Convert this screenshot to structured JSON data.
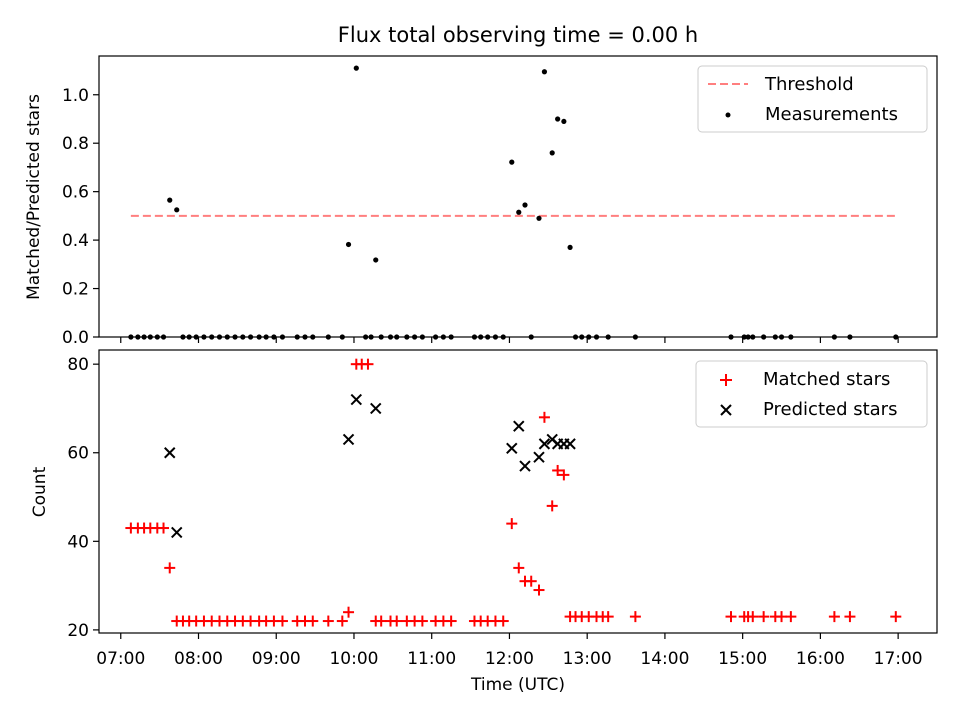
{
  "chart_data": [
    {
      "type": "scatter",
      "title": "Flux total observing time = 0.00 h",
      "ylabel": "Matched/Predicted stars",
      "xlabel": "",
      "x_ticks": [
        "07:00",
        "08:00",
        "09:00",
        "10:00",
        "11:00",
        "12:00",
        "13:00",
        "14:00",
        "15:00",
        "16:00",
        "17:00"
      ],
      "y_ticks": [
        "0.0",
        "0.2",
        "0.4",
        "0.6",
        "0.8",
        "1.0"
      ],
      "ylim": [
        0,
        1.16
      ],
      "xlim_hours": [
        6.72,
        17.5
      ],
      "legend": {
        "placement": "upper-right",
        "entries": [
          "Threshold",
          "Measurements"
        ]
      },
      "threshold": {
        "name": "Threshold",
        "value": 0.5,
        "x_range": [
          7.13,
          16.97
        ],
        "color": "#ff7f7f"
      },
      "measurements": {
        "name": "Measurements",
        "color": "#000000",
        "points": [
          [
            7.13,
            0
          ],
          [
            7.22,
            0
          ],
          [
            7.3,
            0
          ],
          [
            7.38,
            0
          ],
          [
            7.47,
            0
          ],
          [
            7.55,
            0
          ],
          [
            7.63,
            0.565
          ],
          [
            7.72,
            0.525
          ],
          [
            7.8,
            0
          ],
          [
            7.88,
            0
          ],
          [
            7.97,
            0
          ],
          [
            8.07,
            0
          ],
          [
            8.17,
            0
          ],
          [
            8.27,
            0
          ],
          [
            8.37,
            0
          ],
          [
            8.47,
            0
          ],
          [
            8.57,
            0
          ],
          [
            8.67,
            0
          ],
          [
            8.78,
            0
          ],
          [
            8.87,
            0
          ],
          [
            8.97,
            0
          ],
          [
            9.08,
            0
          ],
          [
            9.27,
            0
          ],
          [
            9.37,
            0
          ],
          [
            9.47,
            0
          ],
          [
            9.67,
            0
          ],
          [
            9.85,
            0
          ],
          [
            9.93,
            0.382
          ],
          [
            10.03,
            1.11
          ],
          [
            10.28,
            0.318
          ],
          [
            10.15,
            0
          ],
          [
            10.22,
            0
          ],
          [
            10.35,
            0
          ],
          [
            10.47,
            0
          ],
          [
            10.55,
            0
          ],
          [
            10.68,
            0
          ],
          [
            10.78,
            0
          ],
          [
            10.88,
            0
          ],
          [
            11.05,
            0
          ],
          [
            11.15,
            0
          ],
          [
            11.25,
            0
          ],
          [
            11.55,
            0
          ],
          [
            11.63,
            0
          ],
          [
            11.72,
            0
          ],
          [
            11.82,
            0
          ],
          [
            11.92,
            0
          ],
          [
            12.03,
            0.722
          ],
          [
            12.12,
            0.515
          ],
          [
            12.2,
            0.545
          ],
          [
            12.38,
            0.49
          ],
          [
            12.45,
            1.095
          ],
          [
            12.55,
            0.76
          ],
          [
            12.62,
            0.9
          ],
          [
            12.7,
            0.89
          ],
          [
            12.78,
            0.37
          ],
          [
            12.28,
            0
          ],
          [
            12.85,
            0
          ],
          [
            12.93,
            0
          ],
          [
            13.02,
            0
          ],
          [
            13.12,
            0
          ],
          [
            13.27,
            0
          ],
          [
            13.62,
            0
          ],
          [
            14.85,
            0
          ],
          [
            15.02,
            0
          ],
          [
            15.07,
            0
          ],
          [
            15.13,
            0
          ],
          [
            15.27,
            0
          ],
          [
            15.42,
            0
          ],
          [
            15.5,
            0
          ],
          [
            15.62,
            0
          ],
          [
            16.18,
            0
          ],
          [
            16.38,
            0
          ],
          [
            16.97,
            0
          ]
        ]
      }
    },
    {
      "type": "scatter",
      "title": "",
      "ylabel": "Count",
      "xlabel": "Time (UTC)",
      "x_ticks": [
        "07:00",
        "08:00",
        "09:00",
        "10:00",
        "11:00",
        "12:00",
        "13:00",
        "14:00",
        "15:00",
        "16:00",
        "17:00"
      ],
      "y_ticks": [
        "20",
        "40",
        "60",
        "80"
      ],
      "ylim": [
        19.3,
        83.2
      ],
      "xlim_hours": [
        6.72,
        17.5
      ],
      "legend": {
        "placement": "upper-right",
        "entries": [
          "Matched stars",
          "Predicted stars"
        ]
      },
      "series": [
        {
          "name": "Matched stars",
          "marker": "plus",
          "color": "#ff0000",
          "points": [
            [
              7.13,
              43
            ],
            [
              7.22,
              43
            ],
            [
              7.3,
              43
            ],
            [
              7.38,
              43
            ],
            [
              7.47,
              43
            ],
            [
              7.55,
              43
            ],
            [
              7.63,
              34
            ],
            [
              7.72,
              22
            ],
            [
              7.8,
              22
            ],
            [
              7.88,
              22
            ],
            [
              7.97,
              22
            ],
            [
              8.07,
              22
            ],
            [
              8.17,
              22
            ],
            [
              8.27,
              22
            ],
            [
              8.37,
              22
            ],
            [
              8.47,
              22
            ],
            [
              8.57,
              22
            ],
            [
              8.67,
              22
            ],
            [
              8.78,
              22
            ],
            [
              8.87,
              22
            ],
            [
              8.97,
              22
            ],
            [
              9.08,
              22
            ],
            [
              9.27,
              22
            ],
            [
              9.37,
              22
            ],
            [
              9.47,
              22
            ],
            [
              9.67,
              22
            ],
            [
              9.85,
              22
            ],
            [
              9.93,
              24
            ],
            [
              10.03,
              80
            ],
            [
              10.1,
              80
            ],
            [
              10.18,
              80
            ],
            [
              10.28,
              22
            ],
            [
              10.35,
              22
            ],
            [
              10.47,
              22
            ],
            [
              10.55,
              22
            ],
            [
              10.68,
              22
            ],
            [
              10.78,
              22
            ],
            [
              10.88,
              22
            ],
            [
              11.05,
              22
            ],
            [
              11.15,
              22
            ],
            [
              11.25,
              22
            ],
            [
              11.55,
              22
            ],
            [
              11.63,
              22
            ],
            [
              11.72,
              22
            ],
            [
              11.82,
              22
            ],
            [
              11.92,
              22
            ],
            [
              12.03,
              44
            ],
            [
              12.12,
              34
            ],
            [
              12.2,
              31
            ],
            [
              12.28,
              31
            ],
            [
              12.38,
              29
            ],
            [
              12.45,
              68
            ],
            [
              12.55,
              48
            ],
            [
              12.62,
              56
            ],
            [
              12.7,
              55
            ],
            [
              12.78,
              23
            ],
            [
              12.85,
              23
            ],
            [
              12.93,
              23
            ],
            [
              13.02,
              23
            ],
            [
              13.12,
              23
            ],
            [
              13.2,
              23
            ],
            [
              13.27,
              23
            ],
            [
              13.62,
              23
            ],
            [
              14.85,
              23
            ],
            [
              15.02,
              23
            ],
            [
              15.07,
              23
            ],
            [
              15.13,
              23
            ],
            [
              15.27,
              23
            ],
            [
              15.42,
              23
            ],
            [
              15.5,
              23
            ],
            [
              15.62,
              23
            ],
            [
              16.18,
              23
            ],
            [
              16.38,
              23
            ],
            [
              16.97,
              23
            ]
          ]
        },
        {
          "name": "Predicted stars",
          "marker": "x",
          "color": "#000000",
          "points": [
            [
              7.63,
              60
            ],
            [
              7.72,
              42
            ],
            [
              9.93,
              63
            ],
            [
              10.03,
              72
            ],
            [
              10.28,
              70
            ],
            [
              12.03,
              61
            ],
            [
              12.12,
              66
            ],
            [
              12.2,
              57
            ],
            [
              12.38,
              59
            ],
            [
              12.45,
              62
            ],
            [
              12.55,
              63
            ],
            [
              12.62,
              62
            ],
            [
              12.7,
              62
            ],
            [
              12.78,
              62
            ]
          ]
        }
      ]
    }
  ]
}
